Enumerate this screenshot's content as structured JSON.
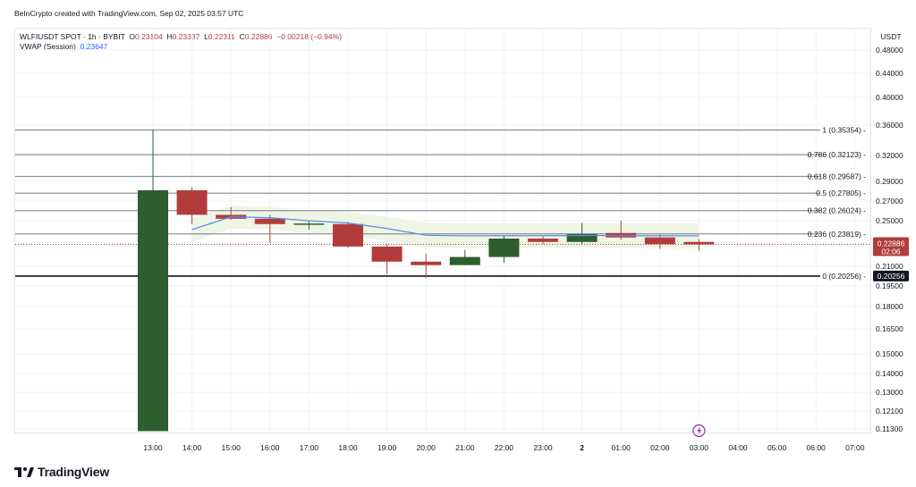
{
  "header": {
    "credit": "BeInCrypto created with TradingView.com, Sep 02, 2025 03:57 UTC"
  },
  "legend": {
    "symbol": "WLFIUSDT SPOT · 1h · BYBIT",
    "ohlc": {
      "o_label": "O",
      "o": "0.23104",
      "h_label": "H",
      "h": "0.23337",
      "l_label": "L",
      "l": "0.22311",
      "c_label": "C",
      "c": "0.22886",
      "change": "−0.00218 (−0.94%)"
    },
    "vwap_label": "VWAP (Session)",
    "vwap_value": "0.23647"
  },
  "brand": {
    "name": "TradingView"
  },
  "chart_data": {
    "type": "candlestick",
    "currency_label": "USDT",
    "x_labels": [
      "13:00",
      "14:00",
      "15:00",
      "16:00",
      "17:00",
      "18:00",
      "19:00",
      "20:00",
      "21:00",
      "22:00",
      "23:00",
      "2",
      "01:00",
      "02:00",
      "03:00",
      "04:00",
      "05:00",
      "06:00",
      "07:00"
    ],
    "y_ticks": [
      "0.48000",
      "0.44000",
      "0.40000",
      "0.36000",
      "0.32000",
      "0.29000",
      "0.27000",
      "0.25000",
      "0.23000",
      "0.21000",
      "0.19500",
      "0.18000",
      "0.16500",
      "0.15000",
      "0.14000",
      "0.13000",
      "0.12100",
      "0.11300"
    ],
    "candles": [
      {
        "time": "13:00",
        "o": 0.112,
        "h": 0.3535,
        "l": 0.112,
        "c": 0.281
      },
      {
        "time": "14:00",
        "o": 0.281,
        "h": 0.284,
        "l": 0.247,
        "c": 0.256
      },
      {
        "time": "15:00",
        "o": 0.256,
        "h": 0.264,
        "l": 0.251,
        "c": 0.252
      },
      {
        "time": "16:00",
        "o": 0.252,
        "h": 0.256,
        "l": 0.23,
        "c": 0.247
      },
      {
        "time": "17:00",
        "o": 0.2465,
        "h": 0.25,
        "l": 0.242,
        "c": 0.2475
      },
      {
        "time": "18:00",
        "o": 0.247,
        "h": 0.249,
        "l": 0.226,
        "c": 0.227
      },
      {
        "time": "19:00",
        "o": 0.227,
        "h": 0.229,
        "l": 0.204,
        "c": 0.214
      },
      {
        "time": "20:00",
        "o": 0.214,
        "h": 0.221,
        "l": 0.201,
        "c": 0.211
      },
      {
        "time": "21:00",
        "o": 0.211,
        "h": 0.224,
        "l": 0.211,
        "c": 0.218
      },
      {
        "time": "22:00",
        "o": 0.218,
        "h": 0.236,
        "l": 0.213,
        "c": 0.234
      },
      {
        "time": "23:00",
        "o": 0.234,
        "h": 0.236,
        "l": 0.229,
        "c": 0.231
      },
      {
        "time": "2",
        "o": 0.231,
        "h": 0.248,
        "l": 0.229,
        "c": 0.238
      },
      {
        "time": "01:00",
        "o": 0.239,
        "h": 0.25,
        "l": 0.233,
        "c": 0.235
      },
      {
        "time": "02:00",
        "o": 0.235,
        "h": 0.238,
        "l": 0.225,
        "c": 0.229
      },
      {
        "time": "03:00",
        "o": 0.231,
        "h": 0.2334,
        "l": 0.2231,
        "c": 0.2289
      }
    ],
    "vwap": [
      {
        "time": "14:00",
        "v": 0.242
      },
      {
        "time": "15:00",
        "v": 0.254
      },
      {
        "time": "16:00",
        "v": 0.253
      },
      {
        "time": "17:00",
        "v": 0.25
      },
      {
        "time": "18:00",
        "v": 0.248
      },
      {
        "time": "19:00",
        "v": 0.243
      },
      {
        "time": "20:00",
        "v": 0.237
      },
      {
        "time": "21:00",
        "v": 0.2365
      },
      {
        "time": "22:00",
        "v": 0.2365
      },
      {
        "time": "23:00",
        "v": 0.2366
      },
      {
        "time": "2",
        "v": 0.2368
      },
      {
        "time": "01:00",
        "v": 0.2366
      },
      {
        "time": "02:00",
        "v": 0.2365
      },
      {
        "time": "03:00",
        "v": 0.2365
      }
    ],
    "fib_levels": [
      {
        "ratio": "1",
        "price": 0.35354,
        "label": "1 (0.35354)"
      },
      {
        "ratio": "0.786",
        "price": 0.32123,
        "label": "0.786 (0.32123)"
      },
      {
        "ratio": "0.618",
        "price": 0.29587,
        "label": "0.618 (0.29587)"
      },
      {
        "ratio": "0.5",
        "price": 0.27805,
        "label": "0.5 (0.27805)"
      },
      {
        "ratio": "0.382",
        "price": 0.26024,
        "label": "0.382 (0.26024)"
      },
      {
        "ratio": "0.236",
        "price": 0.23819,
        "label": "0.236 (0.23819)"
      },
      {
        "ratio": "0",
        "price": 0.20256,
        "label": "0 (0.20256)"
      }
    ],
    "last_price": {
      "value": "0.22886",
      "countdown": "02:06"
    },
    "support_price_tag": "0.20256",
    "colors": {
      "up": "#2e5e2e",
      "down": "#b23c3c",
      "vwap": "#5b8def",
      "band": "#eef5e4",
      "fib": "#787b86",
      "grid": "#f0f3fa"
    }
  }
}
